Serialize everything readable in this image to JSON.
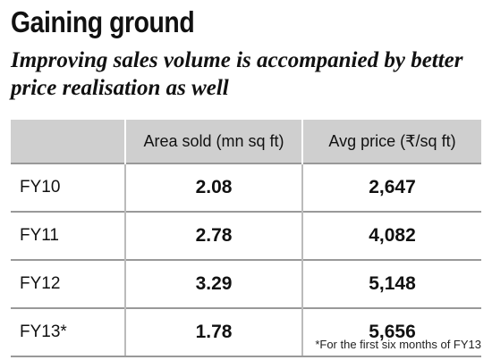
{
  "title": "Gaining ground",
  "subtitle": "Improving sales volume is accompanied by better price realisation as well",
  "footnote": "*For the first six months of FY13",
  "chart_data": {
    "type": "table",
    "columns": [
      "",
      "Area sold (mn sq ft)",
      "Avg price (₹/sq ft)"
    ],
    "rows": [
      {
        "label": "FY10",
        "area_sold": "2.08",
        "avg_price": "2,647"
      },
      {
        "label": "FY11",
        "area_sold": "2.78",
        "avg_price": "4,082"
      },
      {
        "label": "FY12",
        "area_sold": "3.29",
        "avg_price": "5,148"
      },
      {
        "label": "FY13*",
        "area_sold": "1.78",
        "avg_price": "5,656"
      }
    ]
  },
  "colors": {
    "header_bg": "#cfcfcf",
    "rule": "#999999",
    "text": "#111111"
  }
}
